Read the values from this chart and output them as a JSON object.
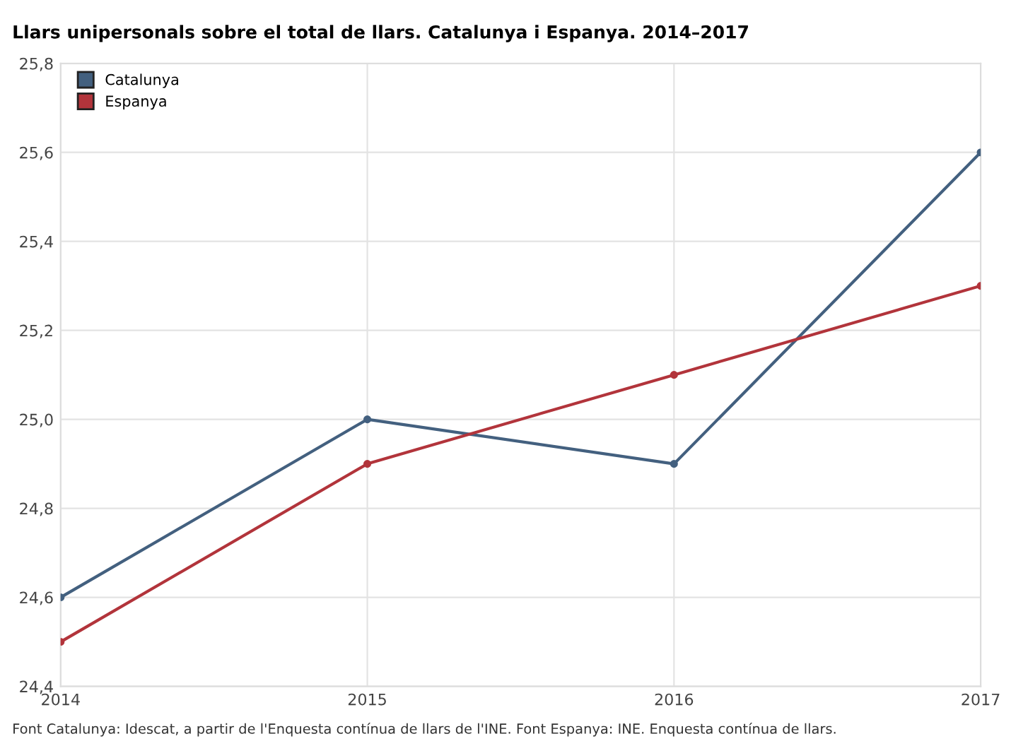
{
  "chart_data": {
    "type": "line",
    "title": "Llars unipersonals sobre el total de llars. Catalunya i Espanya. 2014–2017",
    "x": [
      2014,
      2015,
      2016,
      2017
    ],
    "series": [
      {
        "name": "Catalunya",
        "color": "#43607f",
        "values": [
          24.6,
          25.0,
          24.9,
          25.6
        ]
      },
      {
        "name": "Espanya",
        "color": "#b2343b",
        "values": [
          24.5,
          24.9,
          25.1,
          25.3
        ]
      }
    ],
    "xlim": [
      2014,
      2017
    ],
    "xticks": [
      2014,
      2015,
      2016,
      2017
    ],
    "ylim": [
      24.4,
      25.8
    ],
    "yticks": [
      {
        "value": 24.4,
        "label": "24,4"
      },
      {
        "value": 24.6,
        "label": "24,6"
      },
      {
        "value": 24.8,
        "label": "24,8"
      },
      {
        "value": 25.0,
        "label": "25,0"
      },
      {
        "value": 25.2,
        "label": "25,2"
      },
      {
        "value": 25.4,
        "label": "25,4"
      },
      {
        "value": 25.6,
        "label": "25,6"
      },
      {
        "value": 25.8,
        "label": "25,8"
      }
    ],
    "grid": true,
    "legend": "top left",
    "marker": "circle",
    "line_style": "solid",
    "annotations": [
      "Font Catalunya: Idescat, a partir de l'Enquesta contínua de llars de l'INE. Font Espanya: INE. Enquesta contínua de llars."
    ]
  }
}
